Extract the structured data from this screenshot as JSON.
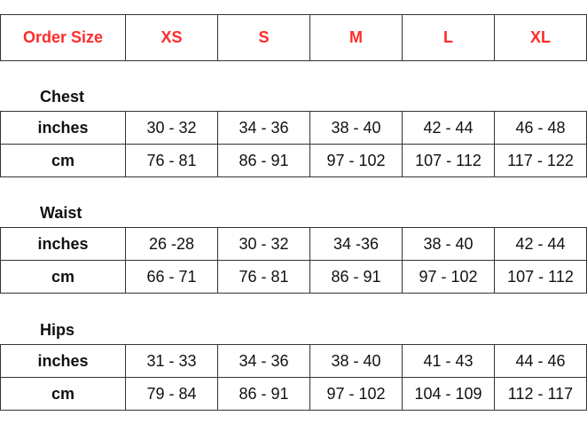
{
  "header": {
    "label": "Order Size",
    "sizes": [
      "XS",
      "S",
      "M",
      "L",
      "XL"
    ],
    "color": "#ff2b2b"
  },
  "sections": [
    {
      "title": "Chest",
      "rows": [
        {
          "unit": "inches",
          "values": [
            "30 - 32",
            "34 - 36",
            "38 - 40",
            "42 - 44",
            "46 - 48"
          ]
        },
        {
          "unit": "cm",
          "values": [
            "76 - 81",
            "86 - 91",
            "97 - 102",
            "107 - 112",
            "117 - 122"
          ]
        }
      ]
    },
    {
      "title": "Waist",
      "rows": [
        {
          "unit": "inches",
          "values": [
            "26 -28",
            "30 - 32",
            "34 -36",
            "38 - 40",
            "42 - 44"
          ]
        },
        {
          "unit": "cm",
          "values": [
            "66 - 71",
            "76 - 81",
            "86 - 91",
            "97 - 102",
            "107 - 112"
          ]
        }
      ]
    },
    {
      "title": "Hips",
      "rows": [
        {
          "unit": "inches",
          "values": [
            "31 - 33",
            "34 - 36",
            "38 - 40",
            "41 - 43",
            "44 - 46"
          ]
        },
        {
          "unit": "cm",
          "values": [
            "79 - 84",
            "86 - 91",
            "97 - 102",
            "104 - 109",
            "112 - 117"
          ]
        }
      ]
    }
  ]
}
